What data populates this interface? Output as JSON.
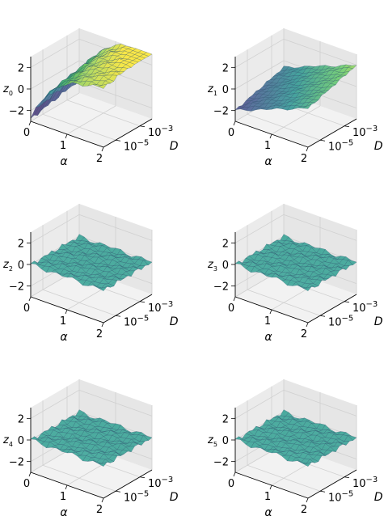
{
  "chart_data": [
    {
      "type": "surface3d",
      "zlabel_base": "z",
      "zlabel_sub": "0",
      "xlabel": "α",
      "ylabel": "D",
      "xticks": [
        "0",
        "1",
        "2"
      ],
      "yticks_base": "10",
      "yticks_exp": [
        "−5",
        "−3"
      ],
      "zticks": [
        "2",
        "0",
        "−2"
      ],
      "xlim": [
        0,
        2
      ],
      "ylog10lim": [
        -6,
        -2
      ],
      "zlim": [
        -3,
        3
      ],
      "surface": {
        "kind": "saturating",
        "base": -2.3,
        "amp": 5.5,
        "k": 1.6,
        "ycoef": 0.25,
        "noise": 0.12
      },
      "colormap": [
        "#440154",
        "#3b528b",
        "#21918c",
        "#5ec962",
        "#fde725"
      ]
    },
    {
      "type": "surface3d",
      "zlabel_base": "z",
      "zlabel_sub": "1",
      "xlabel": "α",
      "ylabel": "D",
      "xticks": [
        "0",
        "1",
        "2"
      ],
      "yticks_base": "10",
      "yticks_exp": [
        "−5",
        "−3"
      ],
      "zticks": [
        "2",
        "0",
        "−2"
      ],
      "xlim": [
        0,
        2
      ],
      "ylog10lim": [
        -6,
        -2
      ],
      "zlim": [
        -3,
        3
      ],
      "surface": {
        "kind": "twisted",
        "base": 0.0,
        "amp": 1.8,
        "k": 1.0,
        "ycoef": 0.0,
        "noise": 0.08
      },
      "colormap": [
        "#440154",
        "#3b528b",
        "#21918c",
        "#5ec962",
        "#fde725"
      ]
    },
    {
      "type": "surface3d",
      "zlabel_base": "z",
      "zlabel_sub": "2",
      "xlabel": "α",
      "ylabel": "D",
      "xticks": [
        "0",
        "1",
        "2"
      ],
      "yticks_base": "10",
      "yticks_exp": [
        "−5",
        "−3"
      ],
      "zticks": [
        "2",
        "0",
        "−2"
      ],
      "xlim": [
        0,
        2
      ],
      "ylog10lim": [
        -6,
        -2
      ],
      "zlim": [
        -3,
        3
      ],
      "surface": {
        "kind": "flat",
        "base": 0.0,
        "amp": 0.0,
        "k": 1.0,
        "ycoef": 0.0,
        "noise": 0.15
      },
      "colormap": [
        "#21918c",
        "#21918c",
        "#2a9d8f",
        "#33a89a",
        "#3fb5a0"
      ]
    },
    {
      "type": "surface3d",
      "zlabel_base": "z",
      "zlabel_sub": "3",
      "xlabel": "α",
      "ylabel": "D",
      "xticks": [
        "0",
        "1",
        "2"
      ],
      "yticks_base": "10",
      "yticks_exp": [
        "−5",
        "−3"
      ],
      "zticks": [
        "2",
        "0",
        "−2"
      ],
      "xlim": [
        0,
        2
      ],
      "ylog10lim": [
        -6,
        -2
      ],
      "zlim": [
        -3,
        3
      ],
      "surface": {
        "kind": "flat",
        "base": 0.0,
        "amp": 0.0,
        "k": 1.0,
        "ycoef": 0.0,
        "noise": 0.15
      },
      "colormap": [
        "#21918c",
        "#21918c",
        "#2a9d8f",
        "#33a89a",
        "#3fb5a0"
      ]
    },
    {
      "type": "surface3d",
      "zlabel_base": "z",
      "zlabel_sub": "4",
      "xlabel": "α",
      "ylabel": "D",
      "xticks": [
        "0",
        "1",
        "2"
      ],
      "yticks_base": "10",
      "yticks_exp": [
        "−5",
        "−3"
      ],
      "zticks": [
        "2",
        "0",
        "−2"
      ],
      "xlim": [
        0,
        2
      ],
      "ylog10lim": [
        -6,
        -2
      ],
      "zlim": [
        -3,
        3
      ],
      "surface": {
        "kind": "flat",
        "base": 0.0,
        "amp": 0.0,
        "k": 1.0,
        "ycoef": 0.0,
        "noise": 0.15
      },
      "colormap": [
        "#21918c",
        "#21918c",
        "#2a9d8f",
        "#33a89a",
        "#3fb5a0"
      ]
    },
    {
      "type": "surface3d",
      "zlabel_base": "z",
      "zlabel_sub": "5",
      "xlabel": "α",
      "ylabel": "D",
      "xticks": [
        "0",
        "1",
        "2"
      ],
      "yticks_base": "10",
      "yticks_exp": [
        "−5",
        "−3"
      ],
      "zticks": [
        "2",
        "0",
        "−2"
      ],
      "xlim": [
        0,
        2
      ],
      "ylog10lim": [
        -6,
        -2
      ],
      "zlim": [
        -3,
        3
      ],
      "surface": {
        "kind": "flat",
        "base": 0.0,
        "amp": 0.0,
        "k": 1.0,
        "ycoef": 0.0,
        "noise": 0.15
      },
      "colormap": [
        "#21918c",
        "#21918c",
        "#2a9d8f",
        "#33a89a",
        "#3fb5a0"
      ]
    }
  ]
}
